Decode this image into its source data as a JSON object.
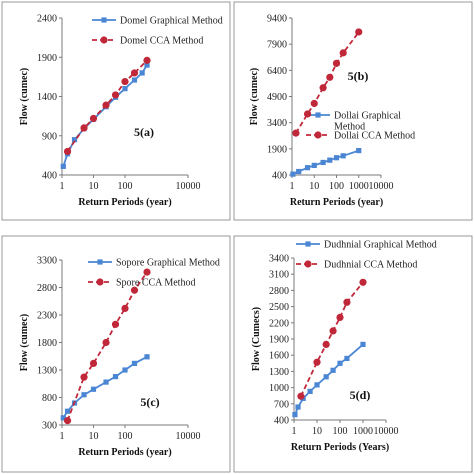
{
  "colors": {
    "graphical": "#4a86d4",
    "cca": "#c0283a",
    "axis": "#7a7a7a",
    "panel_border": "#9a9a9a"
  },
  "chart_data": [
    {
      "type": "line",
      "panel_label": "5(a)",
      "xlabel": "Return Periods (year)",
      "ylabel": "Flow (cumec)",
      "x_scale": "log",
      "xlim": [
        1,
        10000
      ],
      "x_ticks": [
        "1",
        "10",
        "100",
        "10000"
      ],
      "x_tick_values": [
        1,
        10,
        100,
        10000
      ],
      "ylim": [
        400,
        2400
      ],
      "y_ticks": [
        "400",
        "900",
        "1400",
        "1900",
        "2400"
      ],
      "y_tick_values": [
        400,
        900,
        1400,
        1900,
        2400
      ],
      "legend_position": "top-left",
      "series": [
        {
          "name": "Domel Graphical Method",
          "style": "solid-square",
          "x": [
            1.1,
            1.5,
            2.5,
            5,
            10,
            25,
            50,
            100,
            200,
            350,
            500
          ],
          "y": [
            510,
            670,
            850,
            990,
            1110,
            1270,
            1390,
            1500,
            1610,
            1700,
            1800
          ]
        },
        {
          "name": "Domel CCA Method",
          "style": "dashed-circle",
          "x": [
            1.5,
            5,
            10,
            25,
            50,
            100,
            200,
            500
          ],
          "y": [
            700,
            1000,
            1120,
            1290,
            1420,
            1590,
            1700,
            1860
          ]
        }
      ]
    },
    {
      "type": "line",
      "panel_label": "5(b)",
      "xlabel": "Return Periods (year)",
      "ylabel": "Flow (cumec)",
      "x_scale": "log",
      "xlim": [
        1,
        10000
      ],
      "x_ticks": [
        "1",
        "10",
        "100",
        "1000",
        "10000"
      ],
      "x_tick_values": [
        1,
        10,
        100,
        1000,
        10000
      ],
      "ylim": [
        400,
        9400
      ],
      "y_ticks": [
        "400",
        "1900",
        "3400",
        "4900",
        "6400",
        "7900",
        "9400"
      ],
      "y_tick_values": [
        400,
        1900,
        3400,
        4900,
        6400,
        7900,
        9400
      ],
      "legend_position": "middle-right",
      "series": [
        {
          "name": "Dollai Graphical Method",
          "style": "solid-square",
          "x": [
            1.1,
            2,
            5,
            10,
            25,
            50,
            100,
            200,
            1000
          ],
          "y": [
            450,
            600,
            820,
            950,
            1120,
            1250,
            1390,
            1500,
            1800
          ]
        },
        {
          "name": "Dollai CCA Method",
          "style": "dashed-circle",
          "x": [
            1.5,
            5,
            10,
            25,
            50,
            100,
            200,
            1000
          ],
          "y": [
            2800,
            3900,
            4500,
            5400,
            6000,
            6800,
            7400,
            8600
          ]
        }
      ]
    },
    {
      "type": "line",
      "panel_label": "5(c)",
      "xlabel": "Return Periods (year)",
      "ylabel": "Flow (cumec)",
      "x_scale": "log",
      "xlim": [
        1,
        10000
      ],
      "x_ticks": [
        "1",
        "10",
        "100",
        "10000"
      ],
      "x_tick_values": [
        1,
        10,
        100,
        10000
      ],
      "ylim": [
        300,
        3300
      ],
      "y_ticks": [
        "300",
        "800",
        "1300",
        "1800",
        "2300",
        "2800",
        "3300"
      ],
      "y_tick_values": [
        300,
        800,
        1300,
        1800,
        2300,
        2800,
        3300
      ],
      "legend_position": "top-left",
      "series": [
        {
          "name": "Sopore Graphical Method",
          "style": "solid-square",
          "x": [
            1.1,
            1.5,
            2.5,
            5,
            10,
            25,
            50,
            100,
            200,
            500
          ],
          "y": [
            430,
            550,
            700,
            850,
            950,
            1080,
            1180,
            1300,
            1420,
            1540
          ]
        },
        {
          "name": "Spore CCA Method",
          "style": "dashed-circle",
          "x": [
            1.5,
            5,
            10,
            25,
            50,
            100,
            200,
            500
          ],
          "y": [
            380,
            1170,
            1420,
            1800,
            2130,
            2420,
            2750,
            3080
          ]
        }
      ]
    },
    {
      "type": "line",
      "panel_label": "5(d)",
      "xlabel": "Return Periods (Years)",
      "ylabel": "Flow (Cumecs)",
      "x_scale": "log",
      "xlim": [
        1,
        10000
      ],
      "x_ticks": [
        "1",
        "10",
        "100",
        "1000",
        "10000"
      ],
      "x_tick_values": [
        1,
        10,
        100,
        1000,
        10000
      ],
      "ylim": [
        400,
        3400
      ],
      "y_ticks": [
        "400",
        "700",
        "1000",
        "1300",
        "1600",
        "1900",
        "2200",
        "2500",
        "2800",
        "3100",
        "3400"
      ],
      "y_tick_values": [
        400,
        700,
        1000,
        1300,
        1600,
        1900,
        2200,
        2500,
        2800,
        3100,
        3400
      ],
      "legend_position": "top-left",
      "series": [
        {
          "name": "Dudhnial Graphical Method",
          "style": "solid-square",
          "x": [
            1.1,
            1.5,
            2.5,
            5,
            10,
            25,
            50,
            100,
            200,
            1000
          ],
          "y": [
            500,
            640,
            800,
            930,
            1050,
            1200,
            1320,
            1450,
            1540,
            1800
          ]
        },
        {
          "name": "Dudhnial CCA Method",
          "style": "dashed-circle",
          "x": [
            2,
            10,
            25,
            50,
            100,
            200,
            1000
          ],
          "y": [
            840,
            1470,
            1800,
            2050,
            2300,
            2580,
            2950
          ]
        }
      ]
    }
  ]
}
